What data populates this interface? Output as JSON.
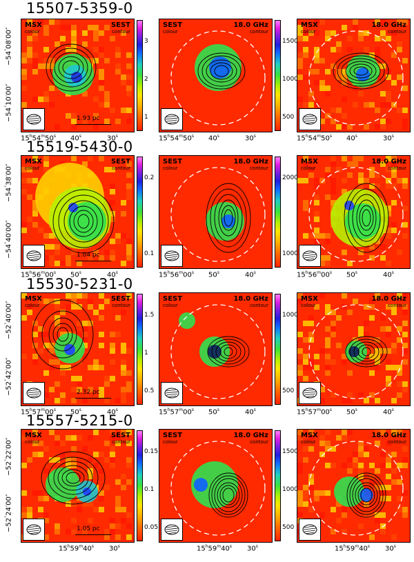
{
  "rows": [
    {
      "title": "15507-5359-0",
      "panels": [
        {
          "left_label": "MSX",
          "left_sub": "colour",
          "right_label": "SEST",
          "right_sub": "contour",
          "scale": "1.93 pc"
        },
        {
          "left_label": "SEST",
          "left_sub": "colour",
          "right_label": "18.0 GHz",
          "right_sub": "contour"
        },
        {
          "left_label": "MSX",
          "left_sub": "colour",
          "right_label": "18.0 GHz",
          "right_sub": "contour"
        }
      ],
      "cbar1_ticks": [
        "3",
        "2",
        "1"
      ],
      "cbar2_ticks": [
        "1500",
        "1000",
        "500"
      ],
      "xticks": [
        "15h54m50s",
        "40s",
        "30s"
      ],
      "yticks": [
        "−54°08′00″",
        "−54°10′00″"
      ]
    },
    {
      "title": "15519-5430-0",
      "panels": [
        {
          "left_label": "MSX",
          "left_sub": "colour",
          "right_label": "SEST",
          "right_sub": "contour",
          "scale": "1.04 pc"
        },
        {
          "left_label": "SEST",
          "left_sub": "colour",
          "right_label": "18.0 GHz",
          "right_sub": "contour"
        },
        {
          "left_label": "MSX",
          "left_sub": "colour",
          "right_label": "18.0 GHz",
          "right_sub": "contour"
        }
      ],
      "cbar1_ticks": [
        "0.2",
        "0.1"
      ],
      "cbar2_ticks": [
        "2000",
        "1000"
      ],
      "xticks": [
        "15h56m00s",
        "50s",
        "40s"
      ],
      "yticks": [
        "−54°38′00″",
        "−54°40′00″"
      ]
    },
    {
      "title": "15530-5231-0",
      "panels": [
        {
          "left_label": "MSX",
          "left_sub": "colour",
          "right_label": "SEST",
          "right_sub": "contour",
          "scale": "2.32 pc"
        },
        {
          "left_label": "SEST",
          "left_sub": "colour",
          "right_label": "18.0 GHz",
          "right_sub": "contour"
        },
        {
          "left_label": "MSX",
          "left_sub": "colour",
          "right_label": "18.0 GHz",
          "right_sub": "contour"
        }
      ],
      "cbar1_ticks": [
        "1.5",
        "1",
        "0.5"
      ],
      "cbar2_ticks": [
        "1000",
        "500"
      ],
      "xticks": [
        "15h57m00s",
        "50s",
        "40s"
      ],
      "yticks": [
        "−52°40′00″",
        "−52°42′00″"
      ]
    },
    {
      "title": "15557-5215-0",
      "panels": [
        {
          "left_label": "MSX",
          "left_sub": "colour",
          "right_label": "SEST",
          "right_sub": "contour",
          "scale": "1.05 pc"
        },
        {
          "left_label": "SEST",
          "left_sub": "colour",
          "right_label": "18.0 GHz",
          "right_sub": "contour"
        },
        {
          "left_label": "MSX",
          "left_sub": "colour",
          "right_label": "18.0 GHz",
          "right_sub": "contour"
        }
      ],
      "cbar1_ticks": [
        "0.15",
        "0.1",
        "0.05"
      ],
      "cbar2_ticks": [
        "1500",
        "1000",
        "500"
      ],
      "xticks": [
        "15h59m40s",
        "30s"
      ],
      "yticks": [
        "−52°22′00″",
        "−52°24′00″"
      ]
    }
  ],
  "colors": {
    "background_map": "#ff2a00",
    "contour": "#000000",
    "ring": "#ffffff"
  }
}
